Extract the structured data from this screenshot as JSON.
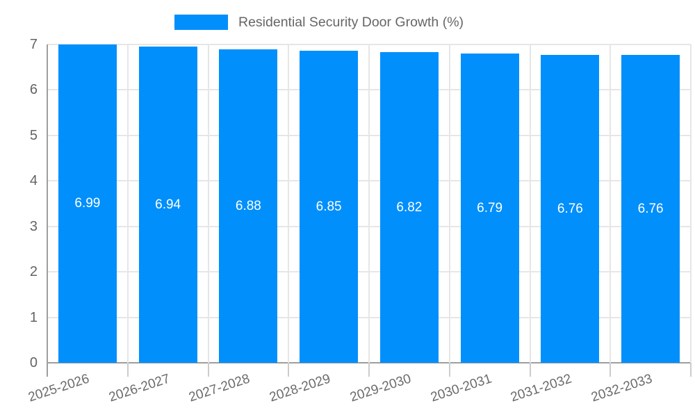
{
  "legend": {
    "label": "Residential Security Door Growth (%)"
  },
  "colors": {
    "bar": "#008ffb",
    "grid": "#e6e6e6",
    "axis": "#9e9e9e",
    "boundary_tick": "#cccccc",
    "axis_text": "#636363",
    "x_axis_text": "#6b6b6b",
    "legend_text": "#666666",
    "value_label_text": "#ffffff",
    "background": "#ffffff"
  },
  "chart_data": {
    "type": "bar",
    "title": "Residential Security Door Growth (%)",
    "categories": [
      "2025-2026",
      "2026-2027",
      "2027-2028",
      "2028-2029",
      "2029-2030",
      "2030-2031",
      "2031-2032",
      "2032-2033"
    ],
    "series": [
      {
        "name": "Residential Security Door Growth (%)",
        "values": [
          6.99,
          6.94,
          6.88,
          6.85,
          6.82,
          6.79,
          6.76,
          6.76
        ]
      }
    ],
    "value_labels": [
      "6.99",
      "6.94",
      "6.88",
      "6.85",
      "6.82",
      "6.79",
      "6.76",
      "6.76"
    ],
    "xlabel": "",
    "ylabel": "",
    "ylim": [
      0,
      7
    ],
    "y_ticks": [
      0,
      1,
      2,
      3,
      4,
      5,
      6,
      7
    ],
    "grid": true,
    "legend_position": "top-center",
    "x_label_rotation_deg": -18,
    "bar_color": "#008ffb"
  }
}
